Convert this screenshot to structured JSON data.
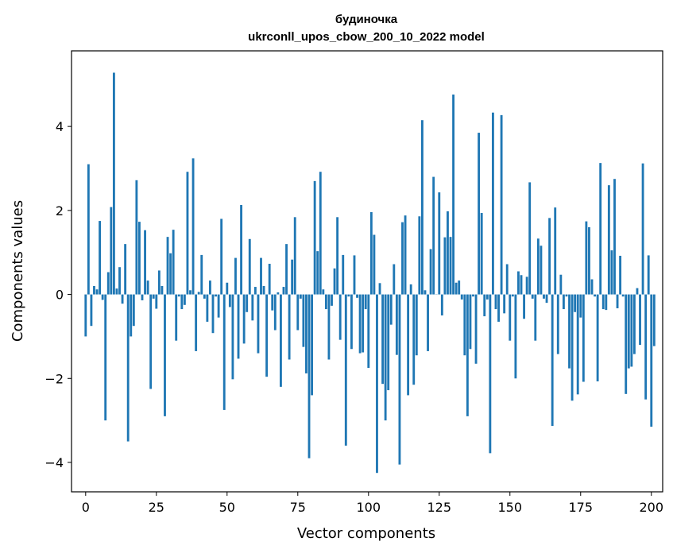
{
  "chart_data": {
    "type": "bar",
    "title": "будиночка",
    "subtitle": "ukrconll_upos_cbow_200_10_2022 model",
    "xlabel": "Vector components",
    "ylabel": "Components values",
    "xlim": [
      -5,
      204
    ],
    "ylim": [
      -4.7,
      5.8
    ],
    "xticks": [
      0,
      25,
      50,
      75,
      100,
      125,
      150,
      175,
      200
    ],
    "yticks": [
      -4,
      -2,
      0,
      2,
      4
    ],
    "xtick_labels": [
      "0",
      "25",
      "50",
      "75",
      "100",
      "125",
      "150",
      "175",
      "200"
    ],
    "ytick_labels": [
      "−4",
      "−2",
      "0",
      "2",
      "4"
    ],
    "grid": false,
    "bar_color": "#1f77b4",
    "values": [
      -1.0,
      3.1,
      -0.75,
      0.2,
      0.12,
      1.75,
      -0.13,
      -3.0,
      0.53,
      2.08,
      5.28,
      0.14,
      0.65,
      -0.22,
      1.2,
      -3.5,
      -1.0,
      -0.75,
      2.72,
      1.73,
      -0.14,
      1.53,
      0.33,
      -2.25,
      -0.1,
      -0.34,
      0.57,
      0.2,
      -2.9,
      1.37,
      0.98,
      1.54,
      -1.1,
      -0.05,
      -0.35,
      -0.25,
      2.92,
      0.1,
      3.24,
      -1.35,
      0.06,
      0.94,
      -0.1,
      -0.65,
      0.33,
      -0.92,
      -0.05,
      -0.55,
      1.8,
      -2.75,
      0.28,
      -0.3,
      -2.02,
      0.87,
      -1.53,
      2.13,
      -1.17,
      -0.42,
      1.32,
      -0.62,
      0.18,
      -1.4,
      0.87,
      0.2,
      -1.96,
      0.73,
      -0.38,
      -0.85,
      0.05,
      -2.2,
      0.18,
      1.2,
      -1.55,
      0.83,
      1.84,
      -0.85,
      -0.1,
      -1.25,
      -1.88,
      -3.9,
      -2.4,
      2.7,
      1.03,
      2.92,
      0.12,
      -0.35,
      -1.55,
      -0.27,
      0.62,
      1.84,
      -1.08,
      0.94,
      -3.6,
      -0.05,
      -1.3,
      0.93,
      -0.08,
      -1.4,
      -1.38,
      -0.35,
      -1.75,
      1.96,
      1.42,
      -4.25,
      0.27,
      -2.13,
      -3.0,
      -2.28,
      -0.72,
      0.72,
      -1.44,
      -4.05,
      1.72,
      1.88,
      -2.4,
      0.24,
      -2.15,
      -1.45,
      1.86,
      4.15,
      0.1,
      -1.35,
      1.08,
      2.8,
      0.0,
      2.43,
      -0.5,
      1.36,
      1.98,
      1.37,
      4.76,
      0.28,
      0.33,
      -0.12,
      -1.45,
      -2.9,
      -1.3,
      -0.05,
      -1.65,
      3.85,
      1.94,
      -0.52,
      -0.12,
      -3.78,
      4.33,
      -0.35,
      -0.65,
      4.27,
      -0.45,
      0.72,
      -1.1,
      -0.05,
      -2.0,
      0.55,
      0.46,
      -0.58,
      0.42,
      2.67,
      -0.1,
      -1.1,
      1.33,
      1.16,
      -0.1,
      -0.2,
      1.82,
      -3.13,
      2.07,
      -1.42,
      0.47,
      -0.35,
      -0.05,
      -1.76,
      -2.53,
      -0.42,
      -2.38,
      -0.55,
      -2.08,
      1.74,
      1.6,
      0.36,
      -0.05,
      -2.07,
      3.13,
      -0.35,
      -0.37,
      2.6,
      1.05,
      2.75,
      -0.33,
      0.92,
      -0.05,
      -2.37,
      -1.76,
      -1.72,
      -1.42,
      0.15,
      -1.2,
      3.12,
      -2.5,
      0.93,
      -3.15,
      -1.23
    ]
  }
}
